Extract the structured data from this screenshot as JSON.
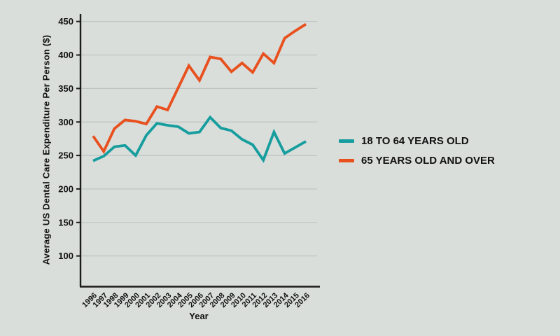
{
  "app": {
    "background": "#d9dedb",
    "text_color": "#111111"
  },
  "chart_data": {
    "type": "line",
    "title": "",
    "xlabel": "Year",
    "ylabel": "Average US Dental Care Expenditure Per Person ($)",
    "x": [
      1996,
      1997,
      1998,
      1999,
      2000,
      2001,
      2002,
      2003,
      2004,
      2005,
      2006,
      2007,
      2008,
      2009,
      2010,
      2011,
      2012,
      2013,
      2014,
      2015,
      2016
    ],
    "series": [
      {
        "name": "18 TO 64 YEARS OLD",
        "color": "#169d9d",
        "values": [
          242,
          249,
          263,
          265,
          250,
          280,
          298,
          295,
          293,
          283,
          285,
          307,
          291,
          287,
          274,
          266,
          243,
          285,
          253,
          262,
          271
        ]
      },
      {
        "name": "65 YEARS OLD AND OVER",
        "color": "#e8501e",
        "values": [
          279,
          256,
          290,
          303,
          301,
          297,
          323,
          318,
          351,
          384,
          362,
          397,
          394,
          375,
          388,
          374,
          402,
          388,
          425,
          436,
          446
        ]
      }
    ],
    "yticks": [
      100,
      150,
      200,
      250,
      300,
      350,
      400,
      450
    ],
    "ylim": [
      55,
      460
    ],
    "grid": true,
    "gridline_color": "#bcc3c1",
    "axis_color": "#1b1b1b",
    "legend_position": "right"
  }
}
